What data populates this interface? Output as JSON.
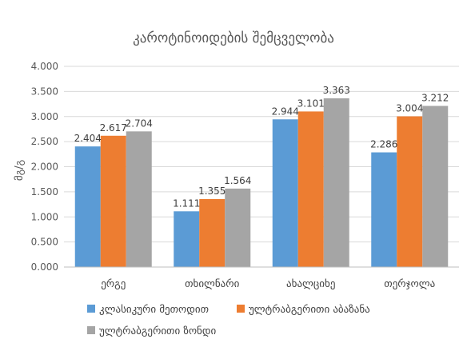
{
  "chart_data": {
    "type": "bar",
    "title": "კაროტინოიდების შემცველობა",
    "xlabel": "",
    "ylabel": "მგ/გ",
    "categories": [
      "ერგე",
      "თხილნარი",
      "ახალციხე",
      "თერჯოლა"
    ],
    "series": [
      {
        "name": "კლასიკური მეთოდით",
        "color": "#5B9BD5",
        "values": [
          2.404,
          1.111,
          2.944,
          2.286
        ],
        "labels": [
          "2.404",
          "1.111",
          "2.944",
          "2.286"
        ]
      },
      {
        "name": "ულტრაბგერითი აბაზანა",
        "color": "#ED7D31",
        "values": [
          2.617,
          1.355,
          3.101,
          3.004
        ],
        "labels": [
          "2.617",
          "1.355",
          "3.101",
          "3.004"
        ]
      },
      {
        "name": "ულტრაბგერითი ზონდი",
        "color": "#A5A5A5",
        "values": [
          2.704,
          1.564,
          3.363,
          3.212
        ],
        "labels": [
          "2.704",
          "1.564",
          "3.363",
          "3.212"
        ]
      }
    ],
    "ylim": [
      0,
      4
    ],
    "yticks": [
      0,
      0.5,
      1,
      1.5,
      2,
      2.5,
      3,
      3.5,
      4
    ],
    "ytick_labels": [
      "0.000",
      "0.500",
      "1.000",
      "1.500",
      "2.000",
      "2.500",
      "3.000",
      "3.500",
      "4.000"
    ],
    "grid": true,
    "legend_position": "bottom",
    "gridline_color": "#D9D9D9",
    "axis_color": "#BFBFBF"
  }
}
